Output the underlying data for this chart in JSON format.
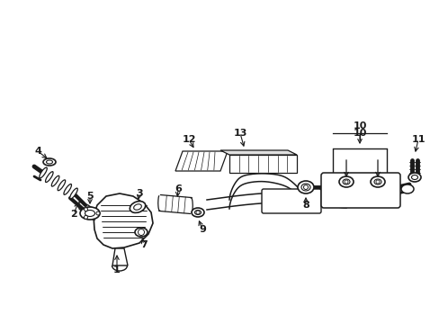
{
  "bg_color": "#ffffff",
  "line_color": "#1a1a1a",
  "figsize": [
    4.89,
    3.6
  ],
  "dpi": 100,
  "xlim": [
    0,
    489
  ],
  "ylim": [
    0,
    360
  ]
}
